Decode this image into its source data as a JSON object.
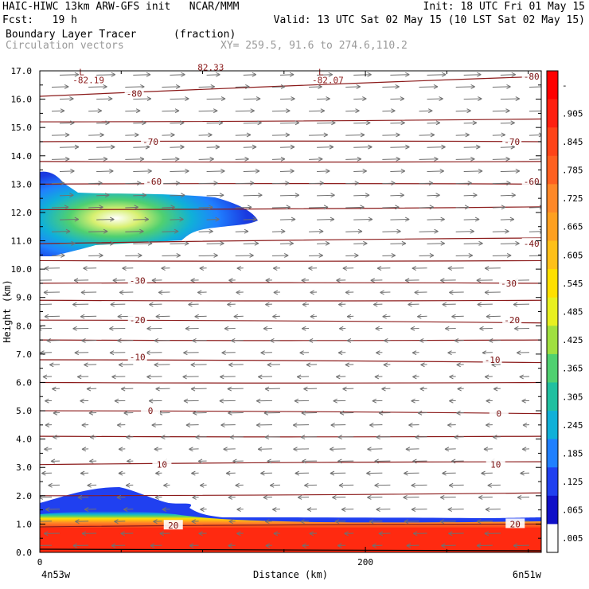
{
  "header": {
    "line1_left": "HAIC-HIWC 13km ARW-GFS init   NCAR/MMM",
    "line1_right": "Init: 18 UTC Fri 01 May 15",
    "line2_left": "Fcst:   19 h",
    "line2_right": "Valid: 13 UTC Sat 02 May 15 (10 LST Sat 02 May 15)",
    "line3_left": "Boundary Layer Tracer",
    "line3_units": "(fraction)",
    "line4_left": "Circulation vectors",
    "line4_xy": "XY= 259.5, 91.6 to 274.6,110.2"
  },
  "chart_data": {
    "type": "heatmap",
    "title": "Boundary Layer Tracer",
    "units": "(fraction)",
    "ylabel": "Height (km)",
    "xlabel": "Distance (km)",
    "ylim": [
      0,
      17
    ],
    "xlim": [
      0,
      308
    ],
    "y_ticks": [
      "0.0",
      "1.0",
      "2.0",
      "3.0",
      "4.0",
      "5.0",
      "6.0",
      "7.0",
      "8.0",
      "9.0",
      "10.0",
      "11.0",
      "12.0",
      "13.0",
      "14.0",
      "15.0",
      "16.0",
      "17.0"
    ],
    "x_ticks": [
      {
        "value": 0,
        "label": "0"
      },
      {
        "value": 200,
        "label": "200"
      }
    ],
    "x_end_labels": {
      "left": "4n53w",
      "right": "6n51w"
    },
    "colorbar": {
      "labels": [
        "-",
        ".905",
        ".845",
        ".785",
        ".725",
        ".665",
        ".605",
        ".545",
        ".485",
        ".425",
        ".365",
        ".305",
        ".245",
        ".185",
        ".125",
        ".065",
        ".005"
      ],
      "colors": [
        "#ff0000",
        "#ff2010",
        "#ff4418",
        "#ff6020",
        "#ff8828",
        "#ffa020",
        "#ffc018",
        "#ffe000",
        "#e8f020",
        "#a0e040",
        "#50d070",
        "#20c0a0",
        "#10b0d8",
        "#2080ff",
        "#2040f0",
        "#1010c8",
        "#ffffff"
      ]
    },
    "temperature_contours": [
      {
        "label": "-80",
        "y_left": 16.1,
        "y_right": 16.8,
        "label_positions": [
          [
            58,
            16.2
          ],
          [
            302,
            16.8
          ]
        ]
      },
      {
        "label": "",
        "y_left": 15.2,
        "y_right": 15.3,
        "label_positions": []
      },
      {
        "label": "-70",
        "y_left": 14.5,
        "y_right": 14.5,
        "label_positions": [
          [
            68,
            14.5
          ],
          [
            290,
            14.5
          ]
        ]
      },
      {
        "label": "",
        "y_left": 13.8,
        "y_right": 13.8,
        "label_positions": []
      },
      {
        "label": "-60",
        "y_left": 13.0,
        "y_right": 13.0,
        "label_positions": [
          [
            70,
            13.1
          ],
          [
            302,
            13.1
          ]
        ]
      },
      {
        "label": "",
        "y_left": 12.1,
        "y_right": 12.2,
        "label_positions": []
      },
      {
        "label": "-40",
        "y_left": 10.9,
        "y_right": 11.1,
        "label_positions": [
          [
            302,
            10.9
          ]
        ]
      },
      {
        "label": "",
        "y_left": 10.3,
        "y_right": 10.3,
        "label_positions": []
      },
      {
        "label": "-30",
        "y_left": 9.5,
        "y_right": 9.5,
        "label_positions": [
          [
            60,
            9.6
          ],
          [
            288,
            9.5
          ]
        ]
      },
      {
        "label": "",
        "y_left": 8.9,
        "y_right": 8.9,
        "label_positions": []
      },
      {
        "label": "-20",
        "y_left": 8.2,
        "y_right": 8.1,
        "label_positions": [
          [
            60,
            8.2
          ],
          [
            290,
            8.2
          ]
        ]
      },
      {
        "label": "",
        "y_left": 7.5,
        "y_right": 7.5,
        "label_positions": []
      },
      {
        "label": "-10",
        "y_left": 6.8,
        "y_right": 6.7,
        "label_positions": [
          [
            60,
            6.9
          ],
          [
            278,
            6.8
          ]
        ]
      },
      {
        "label": "",
        "y_left": 6.0,
        "y_right": 6.0,
        "label_positions": []
      },
      {
        "label": "0",
        "y_left": 5.0,
        "y_right": 4.9,
        "label_positions": [
          [
            68,
            5.0
          ],
          [
            282,
            4.9
          ]
        ]
      },
      {
        "label": "",
        "y_left": 4.1,
        "y_right": 4.1,
        "label_positions": []
      },
      {
        "label": "10",
        "y_left": 3.1,
        "y_right": 3.2,
        "label_positions": [
          [
            75,
            3.1
          ],
          [
            280,
            3.1
          ]
        ]
      },
      {
        "label": "",
        "y_left": 2.0,
        "y_right": 2.1,
        "label_positions": []
      },
      {
        "label": "20",
        "y_left": 0.9,
        "y_right": 1.0,
        "label_positions": [
          [
            82,
            0.95
          ],
          [
            292,
            1.0
          ]
        ]
      }
    ],
    "pressure_lows": [
      {
        "letter": "L",
        "value": "-82.19",
        "x": 28,
        "y": 16.9
      },
      {
        "letter": "L",
        "value": "-82.07",
        "x": 175,
        "y": 16.9
      }
    ],
    "top_cut_label": {
      "text": "82.33",
      "x": 105,
      "y": 17.1
    },
    "vector_grid": {
      "x_count": 14,
      "y_count": 40,
      "description_upper": "eastward flow above 10 km",
      "description_lower": "westward flow below 10 km"
    }
  }
}
